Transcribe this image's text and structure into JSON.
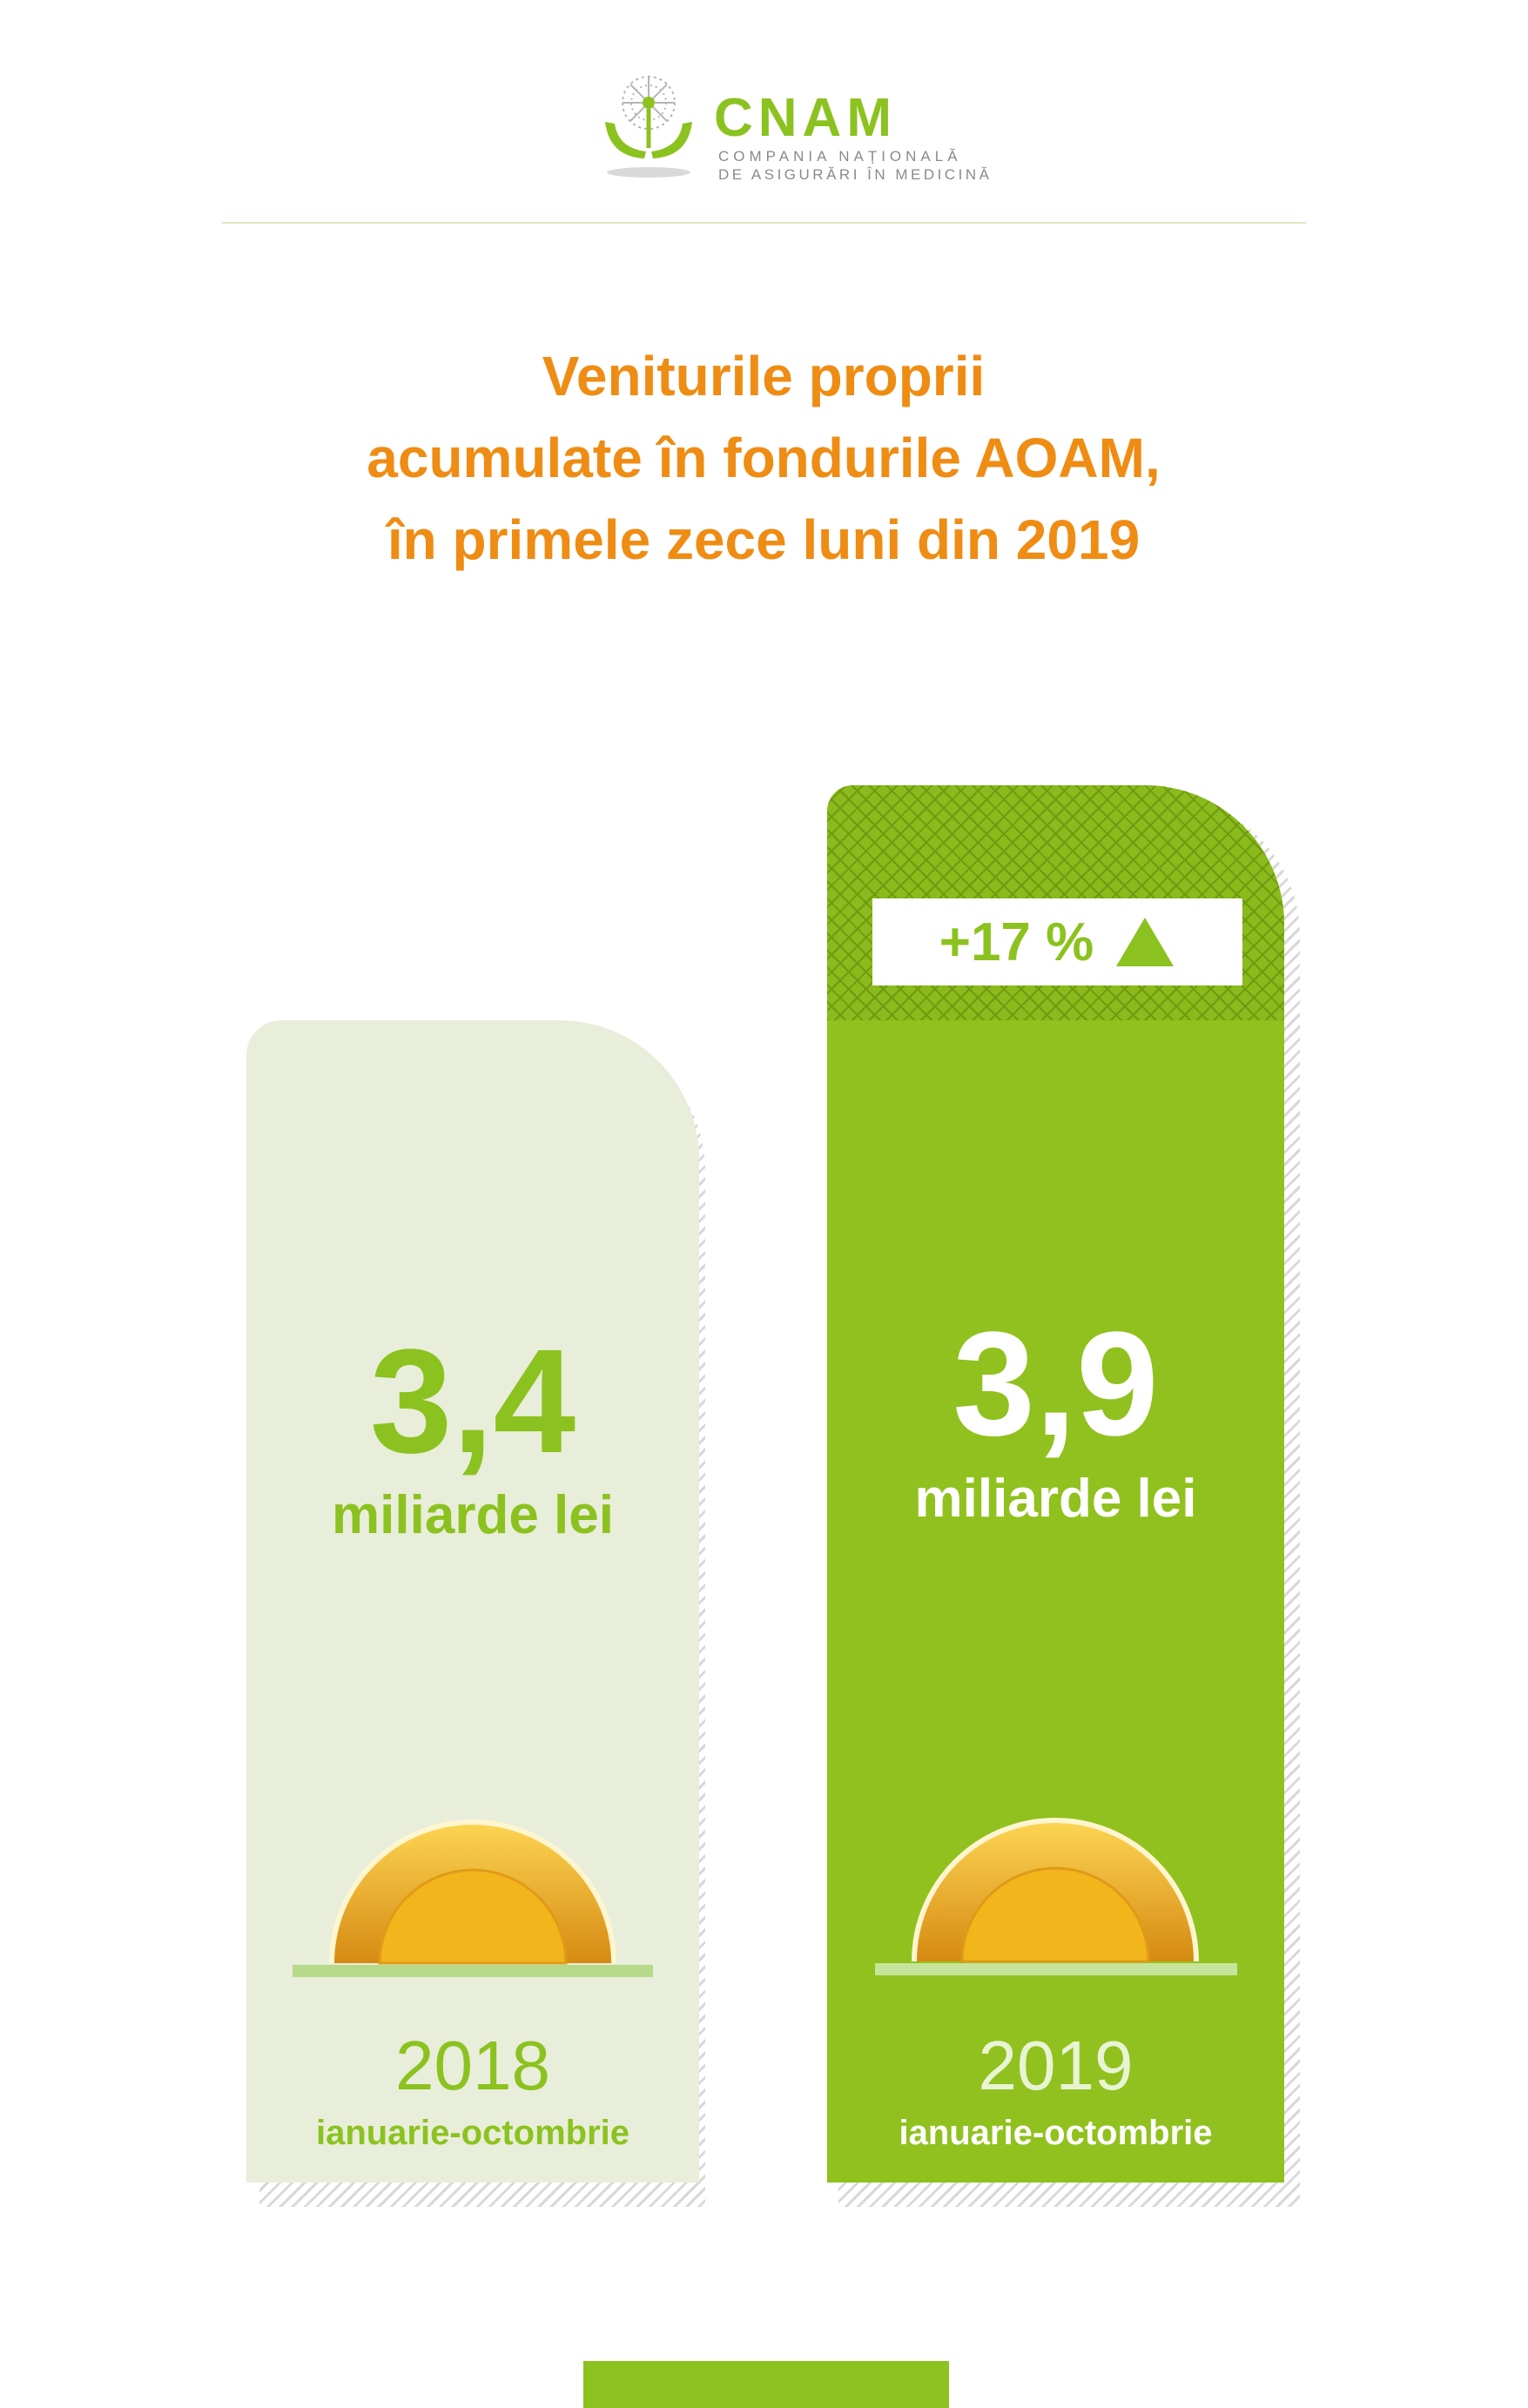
{
  "logo": {
    "name": "CNAM",
    "subtitle_line1": "COMPANIA NAȚIONALĂ",
    "subtitle_line2": "DE ASIGURĂRI ÎN MEDICINĂ"
  },
  "title_lines": [
    "Veniturile proprii",
    "acumulate în fondurile AOAM,",
    "în primele zece luni din 2019"
  ],
  "colors": {
    "title": "#ef8c14",
    "accent_green": "#8cc21f",
    "light_bar": "#e8eed9",
    "coin_gold": "#f2b51c"
  },
  "chart_data": {
    "type": "bar",
    "title": "Veniturile proprii acumulate în fondurile AOAM, în primele zece luni din 2019",
    "categories": [
      "2018",
      "2019"
    ],
    "values": [
      3.4,
      3.9
    ],
    "value_labels": [
      "3,4",
      "3,9"
    ],
    "unit": "miliarde lei",
    "period": "ianuarie-octombrie",
    "change_label": "+17 %",
    "change_direction": "up",
    "ylim": [
      0,
      3.9
    ]
  }
}
